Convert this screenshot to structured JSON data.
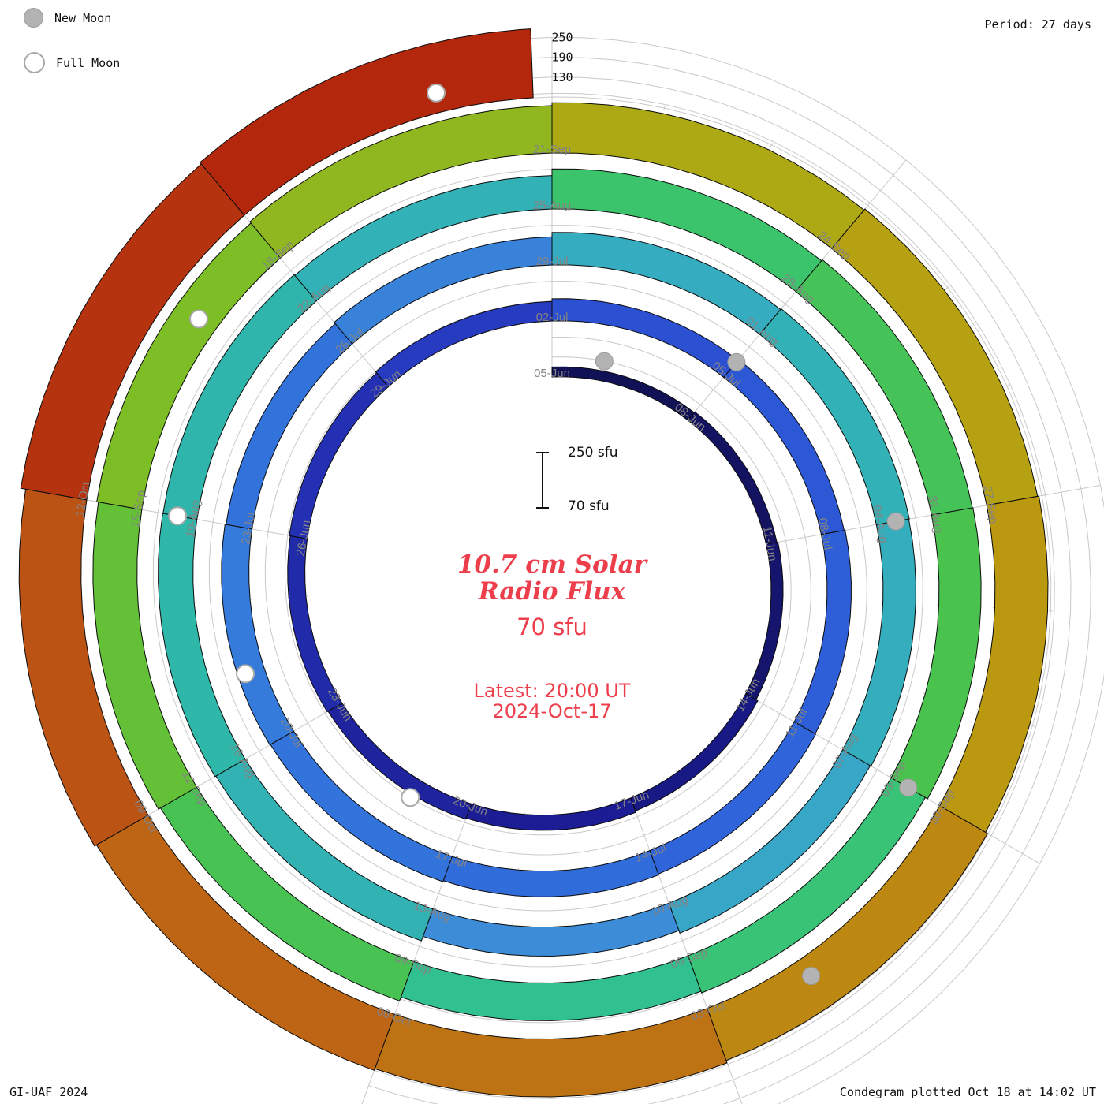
{
  "colors": {
    "accent_red": "#ed3e4b",
    "grid_gray": "#c9c9c9",
    "label_gray": "#848484",
    "moon_gray": "#b3b3b3"
  },
  "legend": {
    "new_moon": "New Moon",
    "full_moon": "Full Moon"
  },
  "header": {
    "period": "Period: 27 days"
  },
  "footer": {
    "credit": "GI-UAF 2024",
    "plotted": "Condegram plotted Oct 18 at 14:02 UT"
  },
  "center": {
    "title_line1": "10.7 cm Solar",
    "title_line2": "Radio Flux",
    "value": "70 sfu",
    "latest_line1": "Latest: 20:00 UT",
    "latest_line2": "2024-Oct-17",
    "scale_top": "250 sfu",
    "scale_bottom": "70 sfu"
  },
  "radial_scale_labels": [
    {
      "label": "250",
      "level": 250
    },
    {
      "label": "190",
      "level": 190
    },
    {
      "label": "130",
      "level": 130
    }
  ],
  "chart_data": {
    "type": "spiral-bar-condegram",
    "title": "10.7 cm Solar Radio Flux",
    "units": "sfu",
    "period_days": 27,
    "segment_days": 3,
    "start_iso": "2024-06-05",
    "latest_iso": "2024-10-17",
    "latest_hour_ut": 20,
    "flux_min": 70,
    "flux_gridlines": [
      130,
      190,
      250
    ],
    "dates": [
      "05-Jun",
      "08-Jun",
      "11-Jun",
      "14-Jun",
      "17-Jun",
      "20-Jun",
      "23-Jun",
      "26-Jun",
      "29-Jun",
      "02-Jul",
      "05-Jul",
      "08-Jul",
      "11-Jul",
      "14-Jul",
      "17-Jul",
      "20-Jul",
      "23-Jul",
      "26-Jul",
      "29-Jul",
      "01-Aug",
      "04-Aug",
      "07-Aug",
      "10-Aug",
      "13-Aug",
      "16-Aug",
      "19-Aug",
      "22-Aug",
      "25-Aug",
      "28-Aug",
      "31-Aug",
      "03-Sep",
      "06-Sep",
      "09-Sep",
      "12-Sep",
      "15-Sep",
      "18-Sep",
      "21-Sep",
      "24-Sep",
      "27-Sep",
      "30-Sep",
      "03-Oct",
      "06-Oct",
      "09-Oct",
      "12-Oct",
      "15-Oct"
    ],
    "flux": [
      100,
      103,
      106,
      112,
      116,
      119,
      122,
      125,
      129,
      137,
      140,
      143,
      145,
      148,
      151,
      153,
      150,
      155,
      168,
      171,
      169,
      166,
      158,
      172,
      175,
      174,
      171,
      191,
      195,
      197,
      189,
      184,
      196,
      203,
      208,
      213,
      222,
      226,
      230,
      237,
      245,
      250,
      257,
      272,
      278
    ],
    "tick_labels": [
      "05-Jun",
      "08-Jun",
      "11-Jun",
      "14-Jun",
      "17-Jun",
      "20-Jun",
      "23-Jun",
      "26-Jun",
      "29-Jun",
      "02-Jul",
      "05-Jul",
      "08-Jul",
      "11-Jul",
      "14-Jul",
      "17-Jul",
      "20-Jul",
      "23-Jul",
      "26-Jul",
      "29-Jul",
      "01-Aug",
      "04-Aug",
      "07-Aug",
      "10-Aug",
      "13-Aug",
      "16-Aug",
      "19-Aug",
      "22-Aug",
      "25-Aug",
      "28-Aug",
      "31-Aug",
      "03-Sep",
      "06-Sep",
      "09-Sep",
      "12-Sep",
      "15-Sep",
      "18-Sep",
      "21-Sep",
      "24-Sep",
      "27-Sep",
      "30-Sep",
      "03-Oct",
      "06-Oct",
      "09-Oct",
      "12-Oct"
    ],
    "moons": {
      "new": [
        "2024-06-06",
        "2024-07-05",
        "2024-08-04",
        "2024-09-03",
        "2024-10-02"
      ],
      "full": [
        "2024-06-21",
        "2024-07-21",
        "2024-08-19",
        "2024-09-17",
        "2024-10-17"
      ]
    },
    "colormap": [
      [
        70,
        "#06061a"
      ],
      [
        95,
        "#0d0d40"
      ],
      [
        105,
        "#14146a"
      ],
      [
        115,
        "#1b1b90"
      ],
      [
        125,
        "#2430b4"
      ],
      [
        135,
        "#2a4cd0"
      ],
      [
        145,
        "#3064da"
      ],
      [
        152,
        "#3377dc"
      ],
      [
        160,
        "#3f93d6"
      ],
      [
        168,
        "#35acc0"
      ],
      [
        175,
        "#2fb7a9"
      ],
      [
        183,
        "#2fc095"
      ],
      [
        191,
        "#3cc46c"
      ],
      [
        199,
        "#4fc244"
      ],
      [
        208,
        "#7dbd26"
      ],
      [
        218,
        "#a3b117"
      ],
      [
        228,
        "#b99d10"
      ],
      [
        238,
        "#bd8612"
      ],
      [
        248,
        "#bd6a15"
      ],
      [
        258,
        "#bb5014"
      ],
      [
        270,
        "#b63610"
      ],
      [
        285,
        "#b01c0a"
      ],
      [
        300,
        "#a80f06"
      ]
    ]
  }
}
